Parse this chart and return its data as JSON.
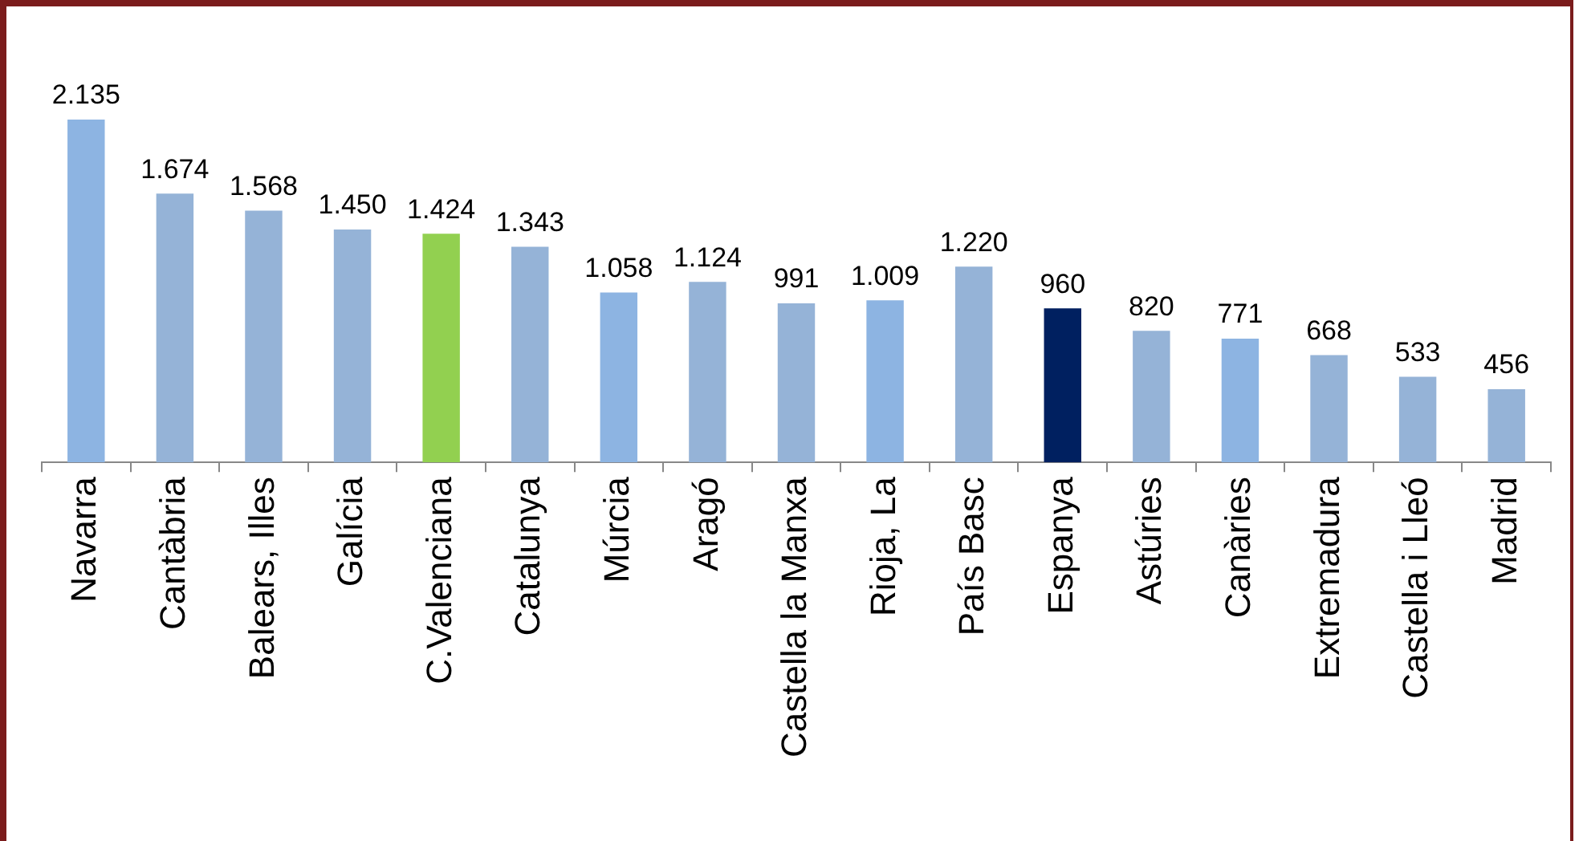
{
  "chart_data": {
    "type": "bar",
    "categories": [
      "Navarra",
      "Cantàbria",
      "Balears, Illes",
      "Galícia",
      "C.Valenciana",
      "Catalunya",
      "Múrcia",
      "Aragó",
      "Castella la Manxa",
      "Rioja, La",
      "País Basc",
      "Espanya",
      "Astúries",
      "Canàries",
      "Extremadura",
      "Castella i Lleó",
      "Madrid"
    ],
    "values": [
      2135,
      1674,
      1568,
      1450,
      1424,
      1343,
      1058,
      1124,
      991,
      1009,
      1220,
      960,
      820,
      771,
      668,
      533,
      456
    ],
    "value_labels": [
      "2.135",
      "1.674",
      "1.568",
      "1.450",
      "1.424",
      "1.343",
      "1.058",
      "1.124",
      "991",
      "1.009",
      "1.220",
      "960",
      "820",
      "771",
      "668",
      "533",
      "456"
    ],
    "colors": [
      "#8db4e2",
      "#95b3d7",
      "#95b3d7",
      "#95b3d7",
      "#92d050",
      "#95b3d7",
      "#8db4e2",
      "#95b3d7",
      "#95b3d7",
      "#8db4e2",
      "#95b3d7",
      "#002060",
      "#95b3d7",
      "#8db4e2",
      "#95b3d7",
      "#95b3d7",
      "#95b3d7"
    ],
    "grid": false,
    "legend": false
  }
}
